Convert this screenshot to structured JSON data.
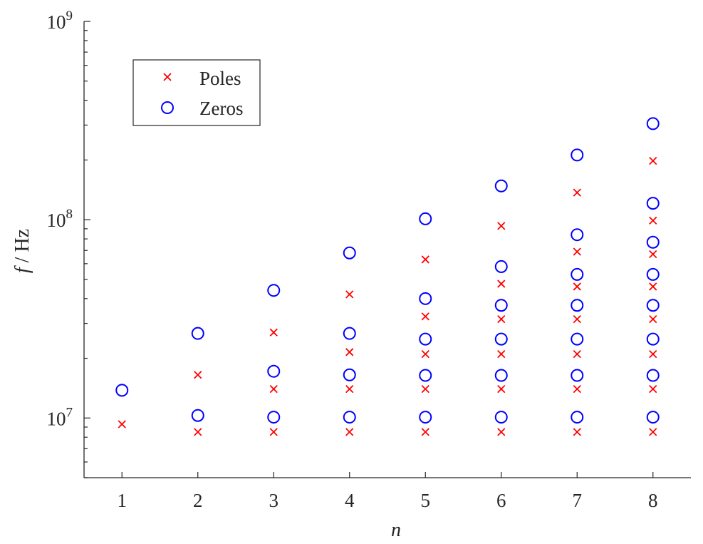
{
  "chart_data": {
    "type": "scatter",
    "title": "",
    "xlabel": "n",
    "ylabel_var": "f",
    "ylabel_sep": " / ",
    "ylabel_unit": "Hz",
    "y_scale": "log",
    "xlim": [
      0.5,
      8.5
    ],
    "ylim": [
      5000000,
      1000000000
    ],
    "x_ticks": [
      1,
      2,
      3,
      4,
      5,
      6,
      7,
      8
    ],
    "y_ticks": [
      {
        "value": 10000000,
        "base": "10",
        "exp": "7"
      },
      {
        "value": 100000000,
        "base": "10",
        "exp": "8"
      },
      {
        "value": 1000000000,
        "base": "10",
        "exp": "9"
      }
    ],
    "grid": false,
    "legend_position": "top-left",
    "series": [
      {
        "name": "Poles",
        "marker": "x",
        "color": "#ff0000",
        "points": [
          [
            1,
            9300000
          ],
          [
            2,
            8500000
          ],
          [
            2,
            16500000
          ],
          [
            3,
            8500000
          ],
          [
            3,
            14000000
          ],
          [
            3,
            27000000
          ],
          [
            4,
            8500000
          ],
          [
            4,
            14000000
          ],
          [
            4,
            21500000
          ],
          [
            4,
            42000000
          ],
          [
            5,
            8500000
          ],
          [
            5,
            14000000
          ],
          [
            5,
            21000000
          ],
          [
            5,
            32500000
          ],
          [
            5,
            63000000
          ],
          [
            6,
            8500000
          ],
          [
            6,
            14000000
          ],
          [
            6,
            21000000
          ],
          [
            6,
            31500000
          ],
          [
            6,
            47500000
          ],
          [
            6,
            93000000
          ],
          [
            7,
            8500000
          ],
          [
            7,
            14000000
          ],
          [
            7,
            21000000
          ],
          [
            7,
            31500000
          ],
          [
            7,
            46000000
          ],
          [
            7,
            69000000
          ],
          [
            7,
            137000000
          ],
          [
            8,
            8500000
          ],
          [
            8,
            14000000
          ],
          [
            8,
            21000000
          ],
          [
            8,
            31500000
          ],
          [
            8,
            46000000
          ],
          [
            8,
            67000000
          ],
          [
            8,
            99000000
          ],
          [
            8,
            198000000
          ]
        ]
      },
      {
        "name": "Zeros",
        "marker": "o",
        "color": "#0000ff",
        "points": [
          [
            1,
            13800000
          ],
          [
            2,
            10300000
          ],
          [
            2,
            26700000
          ],
          [
            3,
            10100000
          ],
          [
            3,
            17200000
          ],
          [
            3,
            44000000
          ],
          [
            4,
            10100000
          ],
          [
            4,
            16500000
          ],
          [
            4,
            26700000
          ],
          [
            4,
            68000000
          ],
          [
            5,
            10100000
          ],
          [
            5,
            16400000
          ],
          [
            5,
            25000000
          ],
          [
            5,
            40000000
          ],
          [
            5,
            101000000
          ],
          [
            6,
            10100000
          ],
          [
            6,
            16400000
          ],
          [
            6,
            25000000
          ],
          [
            6,
            37000000
          ],
          [
            6,
            58000000
          ],
          [
            6,
            148000000
          ],
          [
            7,
            10100000
          ],
          [
            7,
            16400000
          ],
          [
            7,
            25000000
          ],
          [
            7,
            37000000
          ],
          [
            7,
            53000000
          ],
          [
            7,
            84000000
          ],
          [
            7,
            212000000
          ],
          [
            8,
            10100000
          ],
          [
            8,
            16400000
          ],
          [
            8,
            25000000
          ],
          [
            8,
            37000000
          ],
          [
            8,
            53000000
          ],
          [
            8,
            77000000
          ],
          [
            8,
            121000000
          ],
          [
            8,
            305000000
          ]
        ]
      }
    ]
  }
}
